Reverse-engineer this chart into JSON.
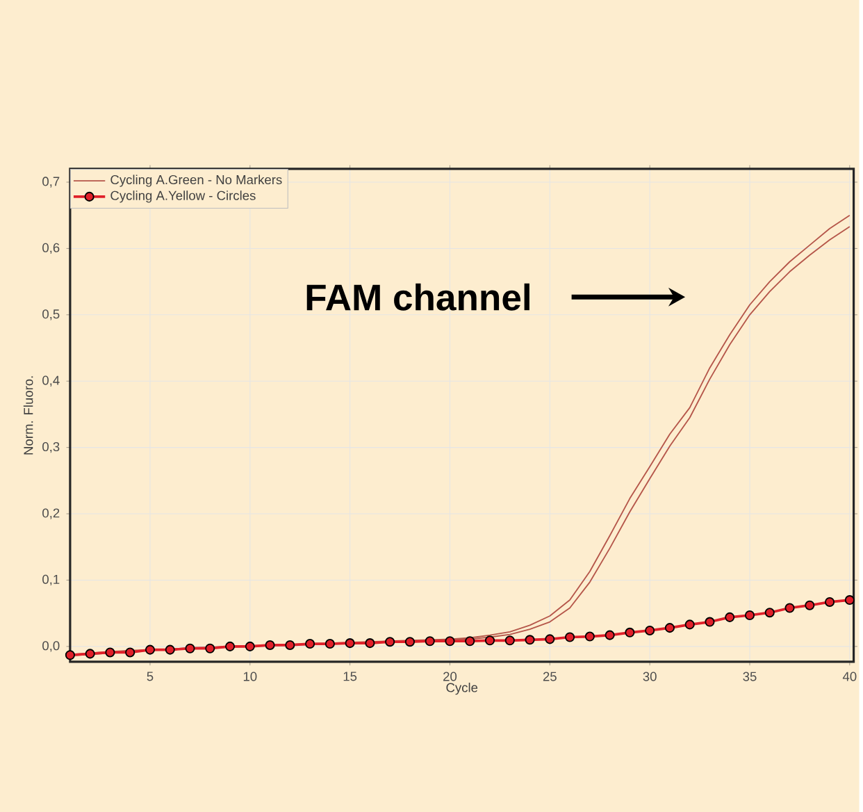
{
  "chart_data": {
    "type": "line",
    "xlabel": "Cycle",
    "ylabel": "Norm. Fluoro.",
    "x": [
      1,
      2,
      3,
      4,
      5,
      6,
      7,
      8,
      9,
      10,
      11,
      12,
      13,
      14,
      15,
      16,
      17,
      18,
      19,
      20,
      21,
      22,
      23,
      24,
      25,
      26,
      27,
      28,
      29,
      30,
      31,
      32,
      33,
      34,
      35,
      36,
      37,
      38,
      39,
      40
    ],
    "series": [
      {
        "name": "Cycling A.Green - No Markers",
        "color": "#b5564a",
        "marker": "none",
        "values": [
          -0.012,
          -0.01,
          -0.008,
          -0.006,
          -0.005,
          -0.004,
          -0.002,
          -0.001,
          0.0,
          0.001,
          0.002,
          0.003,
          0.004,
          0.005,
          0.006,
          0.007,
          0.008,
          0.009,
          0.01,
          0.011,
          0.013,
          0.017,
          0.022,
          0.032,
          0.046,
          0.07,
          0.113,
          0.167,
          0.223,
          0.271,
          0.32,
          0.36,
          0.42,
          0.47,
          0.515,
          0.55,
          0.58,
          0.605,
          0.63,
          0.65
        ]
      },
      {
        "color": "#b5564a",
        "marker": "none",
        "values": [
          -0.014,
          -0.012,
          -0.01,
          -0.008,
          -0.006,
          -0.005,
          -0.003,
          -0.002,
          -0.001,
          0.0,
          0.001,
          0.002,
          0.003,
          0.004,
          0.005,
          0.006,
          0.007,
          0.008,
          0.009,
          0.01,
          0.011,
          0.014,
          0.018,
          0.026,
          0.037,
          0.058,
          0.097,
          0.148,
          0.203,
          0.253,
          0.302,
          0.345,
          0.403,
          0.455,
          0.5,
          0.535,
          0.565,
          0.59,
          0.613,
          0.633
        ]
      },
      {
        "name": "Cycling A.Yellow - Circles",
        "color": "#e0202a",
        "marker": "circle",
        "values": [
          -0.013,
          -0.011,
          -0.009,
          -0.009,
          -0.005,
          -0.005,
          -0.003,
          -0.003,
          0.0,
          0.0,
          0.002,
          0.002,
          0.004,
          0.004,
          0.005,
          0.005,
          0.007,
          0.007,
          0.008,
          0.008,
          0.008,
          0.009,
          0.009,
          0.01,
          0.011,
          0.014,
          0.015,
          0.017,
          0.021,
          0.024,
          0.028,
          0.033,
          0.037,
          0.044,
          0.047,
          0.051,
          0.058,
          0.062,
          0.067,
          0.07
        ]
      }
    ],
    "xlim": [
      1,
      40.2
    ],
    "ylim": [
      -0.023,
      0.72
    ],
    "xticks": [
      5,
      10,
      15,
      20,
      25,
      30,
      35,
      40
    ],
    "yticks": [
      {
        "value": 0,
        "label": "0,0"
      },
      {
        "value": 0.1,
        "label": "0,1"
      },
      {
        "value": 0.2,
        "label": "0,2"
      },
      {
        "value": 0.3,
        "label": "0,3"
      },
      {
        "value": 0.4,
        "label": "0,4"
      },
      {
        "value": 0.5,
        "label": "0,5"
      },
      {
        "value": 0.6,
        "label": "0,6"
      },
      {
        "value": 0.7,
        "label": "0,7"
      }
    ],
    "grid": true,
    "legend": "top left",
    "line_style": "solid",
    "annotations": [
      "FAM channel"
    ]
  }
}
